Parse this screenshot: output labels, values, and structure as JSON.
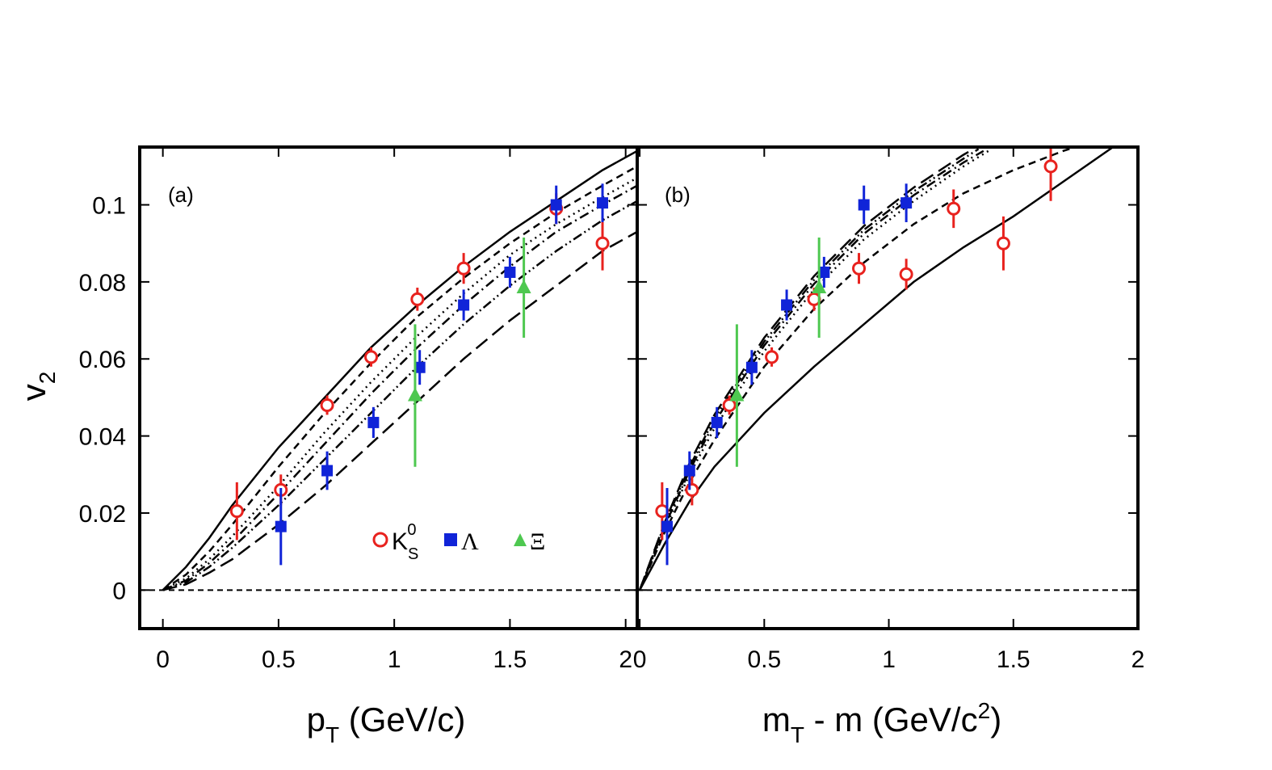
{
  "chart_data": [
    {
      "type": "scatter",
      "panel_label": "(a)",
      "xlabel": "p",
      "xlabel_sub": "T",
      "xlabel_rest": " (GeV/c)",
      "ylabel": "v",
      "ylabel_sub": "2",
      "xlim": [
        -0.1,
        2.05
      ],
      "ylim": [
        -0.01,
        0.115
      ],
      "x_ticks": [
        0,
        0.5,
        1,
        1.5,
        2
      ],
      "x_tick_labels": [
        "0",
        "0.5",
        "1",
        "1.5",
        "2"
      ],
      "y_ticks": [
        0,
        0.02,
        0.04,
        0.06,
        0.08,
        0.1
      ],
      "y_tick_labels": [
        "0",
        "0.02",
        "0.04",
        "0.06",
        "0.08",
        "0.1"
      ],
      "legend": {
        "placement": "bottom-right",
        "entries": [
          {
            "label": "K",
            "sub": "S",
            "sup": "0",
            "marker": "open-circle",
            "color": "#e8221e"
          },
          {
            "label": "Λ",
            "marker": "filled-square",
            "color": "#1024d8"
          },
          {
            "label": "Ξ",
            "marker": "filled-triangle",
            "color": "#4ec850"
          }
        ]
      },
      "series": [
        {
          "name": "K",
          "marker": "open-circle",
          "color": "#e8221e",
          "x": [
            0.32,
            0.51,
            0.71,
            0.9,
            1.1,
            1.3,
            1.7,
            1.9
          ],
          "y": [
            0.0205,
            0.026,
            0.048,
            0.0605,
            0.0755,
            0.0835,
            0.099,
            0.09
          ],
          "err": [
            0.0075,
            0.004,
            0.0025,
            0.0025,
            0.003,
            0.004,
            0.004,
            0.007
          ]
        },
        {
          "name": "Λ",
          "marker": "filled-square",
          "color": "#1024d8",
          "x": [
            0.51,
            0.71,
            0.91,
            1.11,
            1.3,
            1.5,
            1.7,
            1.9
          ],
          "y": [
            0.0165,
            0.031,
            0.0435,
            0.0578,
            0.074,
            0.0825,
            0.1,
            0.1005
          ],
          "err": [
            0.01,
            0.005,
            0.004,
            0.0045,
            0.004,
            0.004,
            0.005,
            0.005
          ]
        },
        {
          "name": "Ξ",
          "marker": "filled-triangle",
          "color": "#4ec850",
          "x": [
            1.09,
            1.56
          ],
          "y": [
            0.0505,
            0.0785
          ],
          "err": [
            0.0185,
            0.013
          ]
        }
      ],
      "curves": [
        {
          "dash": "solid",
          "x": [
            0.0,
            0.1,
            0.2,
            0.3,
            0.5,
            0.7,
            0.9,
            1.1,
            1.3,
            1.5,
            1.7,
            1.9,
            2.05
          ],
          "y": [
            0.0,
            0.006,
            0.0135,
            0.022,
            0.037,
            0.05,
            0.063,
            0.074,
            0.084,
            0.093,
            0.101,
            0.109,
            0.114
          ]
        },
        {
          "dash": "short-dash",
          "x": [
            0.0,
            0.1,
            0.2,
            0.3,
            0.5,
            0.7,
            0.9,
            1.1,
            1.3,
            1.5,
            1.7,
            1.9,
            2.05
          ],
          "y": [
            0.0,
            0.004,
            0.01,
            0.017,
            0.032,
            0.046,
            0.059,
            0.071,
            0.081,
            0.09,
            0.098,
            0.105,
            0.11
          ]
        },
        {
          "dash": "dot",
          "x": [
            0.0,
            0.1,
            0.2,
            0.3,
            0.5,
            0.7,
            0.9,
            1.1,
            1.3,
            1.5,
            1.7,
            1.9,
            2.05
          ],
          "y": [
            0.0,
            0.003,
            0.008,
            0.014,
            0.027,
            0.041,
            0.054,
            0.066,
            0.077,
            0.087,
            0.095,
            0.102,
            0.107
          ]
        },
        {
          "dash": "dash-dot",
          "x": [
            0.0,
            0.1,
            0.2,
            0.3,
            0.5,
            0.7,
            0.9,
            1.1,
            1.3,
            1.5,
            1.7,
            1.9,
            2.05
          ],
          "y": [
            0.0,
            0.0025,
            0.007,
            0.0125,
            0.025,
            0.038,
            0.051,
            0.063,
            0.074,
            0.084,
            0.093,
            0.1,
            0.105
          ]
        },
        {
          "dash": "dash-dot-dot",
          "x": [
            0.0,
            0.1,
            0.2,
            0.3,
            0.5,
            0.7,
            0.9,
            1.1,
            1.3,
            1.5,
            1.7,
            1.9,
            2.05
          ],
          "y": [
            0.0,
            0.002,
            0.006,
            0.011,
            0.022,
            0.034,
            0.046,
            0.058,
            0.069,
            0.079,
            0.088,
            0.096,
            0.101
          ]
        },
        {
          "dash": "long-dash",
          "x": [
            0.0,
            0.1,
            0.2,
            0.3,
            0.5,
            0.7,
            0.9,
            1.1,
            1.3,
            1.5,
            1.7,
            1.9,
            2.05
          ],
          "y": [
            0.0,
            0.0015,
            0.0045,
            0.008,
            0.017,
            0.027,
            0.038,
            0.049,
            0.06,
            0.07,
            0.079,
            0.088,
            0.093
          ]
        }
      ],
      "reference_line": {
        "y": 0,
        "dash": "short-dash"
      }
    },
    {
      "type": "scatter",
      "panel_label": "(b)",
      "xlabel": "m",
      "xlabel_sub": "T",
      "xlabel_rest": " - m (GeV/c",
      "xlabel_sup": "2",
      "xlabel_end": ")",
      "xlim": [
        -0.01,
        2.0
      ],
      "ylim": [
        -0.01,
        0.115
      ],
      "x_ticks": [
        0,
        0.5,
        1,
        1.5,
        2
      ],
      "x_tick_labels": [
        "0",
        "0.5",
        "1",
        "1.5",
        "2"
      ],
      "series": [
        {
          "name": "K",
          "marker": "open-circle",
          "color": "#e8221e",
          "x": [
            0.09,
            0.21,
            0.36,
            0.53,
            0.7,
            0.88,
            1.07,
            1.26,
            1.46,
            1.65
          ],
          "y": [
            0.0205,
            0.026,
            0.048,
            0.0605,
            0.0755,
            0.0835,
            0.082,
            0.099,
            0.09,
            0.11
          ],
          "err": [
            0.0075,
            0.004,
            0.0025,
            0.0025,
            0.003,
            0.004,
            0.004,
            0.005,
            0.007,
            0.009
          ]
        },
        {
          "name": "Λ",
          "marker": "filled-square",
          "color": "#1024d8",
          "x": [
            0.11,
            0.2,
            0.31,
            0.45,
            0.59,
            0.74,
            0.9,
            1.07
          ],
          "y": [
            0.0165,
            0.031,
            0.0435,
            0.0578,
            0.074,
            0.0825,
            0.1,
            0.1005
          ],
          "err": [
            0.01,
            0.005,
            0.004,
            0.0045,
            0.004,
            0.004,
            0.005,
            0.005
          ]
        },
        {
          "name": "Ξ",
          "marker": "filled-triangle",
          "color": "#4ec850",
          "x": [
            0.39,
            0.72
          ],
          "y": [
            0.0505,
            0.0785
          ],
          "err": [
            0.0185,
            0.013
          ]
        }
      ],
      "curves": [
        {
          "dash": "solid",
          "x": [
            0.0,
            0.1,
            0.2,
            0.3,
            0.5,
            0.7,
            0.9,
            1.1,
            1.3,
            1.5,
            1.7,
            1.9
          ],
          "y": [
            0.0,
            0.012,
            0.023,
            0.032,
            0.046,
            0.058,
            0.069,
            0.08,
            0.089,
            0.097,
            0.106,
            0.115
          ]
        },
        {
          "dash": "short-dash",
          "x": [
            0.0,
            0.1,
            0.2,
            0.3,
            0.5,
            0.7,
            0.9,
            1.1,
            1.3,
            1.5,
            1.7,
            1.8
          ],
          "y": [
            0.0,
            0.015,
            0.028,
            0.039,
            0.058,
            0.073,
            0.085,
            0.095,
            0.103,
            0.109,
            0.114,
            0.116
          ]
        },
        {
          "dash": "dot",
          "x": [
            0.0,
            0.1,
            0.2,
            0.3,
            0.5,
            0.7,
            0.9,
            1.1,
            1.3,
            1.4
          ],
          "y": [
            0.0,
            0.016,
            0.03,
            0.042,
            0.062,
            0.078,
            0.091,
            0.101,
            0.11,
            0.114
          ]
        },
        {
          "dash": "dash-dot",
          "x": [
            0.0,
            0.1,
            0.2,
            0.3,
            0.5,
            0.7,
            0.9,
            1.1,
            1.3,
            1.38
          ],
          "y": [
            0.0,
            0.0165,
            0.031,
            0.0435,
            0.0635,
            0.0795,
            0.0925,
            0.1025,
            0.111,
            0.114
          ]
        },
        {
          "dash": "dash-dot-dot",
          "x": [
            0.0,
            0.1,
            0.2,
            0.3,
            0.5,
            0.7,
            0.9,
            1.1,
            1.3,
            1.36
          ],
          "y": [
            0.0,
            0.017,
            0.032,
            0.0445,
            0.0645,
            0.0805,
            0.0935,
            0.1035,
            0.112,
            0.1145
          ]
        },
        {
          "dash": "long-dash",
          "x": [
            0.0,
            0.1,
            0.2,
            0.3,
            0.5,
            0.7,
            0.9,
            1.1,
            1.3,
            1.34
          ],
          "y": [
            0.0,
            0.0175,
            0.033,
            0.0455,
            0.0655,
            0.0815,
            0.0945,
            0.1045,
            0.113,
            0.1145
          ]
        }
      ],
      "reference_line": {
        "y": 0,
        "dash": "short-dash"
      }
    }
  ]
}
